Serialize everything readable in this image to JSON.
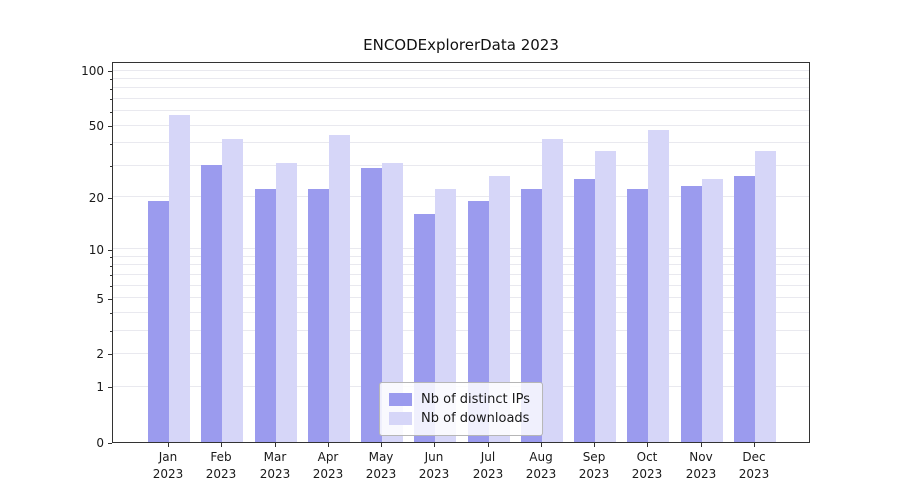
{
  "figure": {
    "title": "ENCODExplorerData 2023"
  },
  "chart_data": {
    "type": "bar",
    "title": "ENCODExplorerData 2023",
    "xlabel": "",
    "ylabel": "",
    "yscale": "log1p (symlog-like: position ~ log10(1+v))",
    "ylim": [
      0,
      112
    ],
    "yticks": [
      0,
      1,
      2,
      5,
      10,
      20,
      50,
      100
    ],
    "grid_values": [
      1,
      2,
      3,
      4,
      5,
      6,
      7,
      8,
      9,
      10,
      20,
      30,
      40,
      50,
      60,
      70,
      80,
      90,
      100
    ],
    "months": [
      "Jan",
      "Feb",
      "Mar",
      "Apr",
      "May",
      "Jun",
      "Jul",
      "Aug",
      "Sep",
      "Oct",
      "Nov",
      "Dec"
    ],
    "year": "2023",
    "series": [
      {
        "name": "Nb of distinct IPs",
        "color": "#9b9bee",
        "values": [
          19,
          30,
          22,
          22,
          29,
          16,
          19,
          22,
          25,
          22,
          23,
          26
        ]
      },
      {
        "name": "Nb of downloads",
        "color": "#d6d6f8",
        "values": [
          57,
          42,
          31,
          44,
          31,
          22,
          26,
          42,
          36,
          47,
          25,
          36
        ]
      }
    ],
    "legend": {
      "position": "bottom-center",
      "items": [
        "Nb of distinct IPs",
        "Nb of downloads"
      ]
    }
  }
}
